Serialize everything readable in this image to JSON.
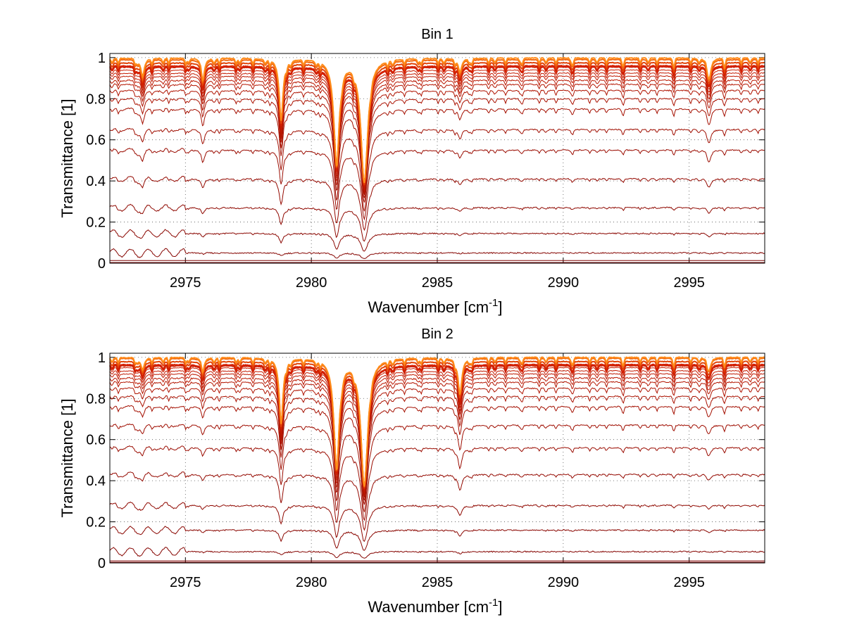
{
  "chart_data": [
    {
      "type": "line",
      "title": "Bin 1",
      "xlabel": "Wavenumber [cm",
      "xlabel_superscript": "-1",
      "xlabel_suffix": "]",
      "ylabel": "Transmittance [1]",
      "xlim": [
        2972,
        2998
      ],
      "ylim": [
        0,
        1.02
      ],
      "xticks": [
        2975,
        2980,
        2985,
        2990,
        2995
      ],
      "yticks": [
        0,
        0.2,
        0.4,
        0.6,
        0.8,
        1
      ],
      "ytick_labels": [
        "0",
        "0.2",
        "0.4",
        "0.6",
        "0.8",
        "1"
      ],
      "grid": true,
      "series_baselines": [
        0.003,
        0.013,
        0.05,
        0.145,
        0.27,
        0.41,
        0.55,
        0.65,
        0.75,
        0.8,
        0.84,
        0.87,
        0.89,
        0.91,
        0.925,
        0.94,
        0.955,
        0.96,
        0.975,
        0.99,
        0.998
      ],
      "absorption_lines": [
        {
          "x": 2973.3,
          "relative_depth": 0.09,
          "half_width": 0.08
        },
        {
          "x": 2975.7,
          "relative_depth": 0.09,
          "half_width": 0.08
        },
        {
          "x": 2978.8,
          "relative_depth": 0.3,
          "half_width": 0.09
        },
        {
          "x": 2981.0,
          "relative_depth": 0.5,
          "half_width": 0.13
        },
        {
          "x": 2982.1,
          "relative_depth": 0.6,
          "half_width": 0.16
        },
        {
          "x": 2985.9,
          "relative_depth": 0.07,
          "half_width": 0.08
        },
        {
          "x": 2995.8,
          "relative_depth": 0.1,
          "half_width": 0.08
        }
      ],
      "colors": {
        "dark": "#7a0000",
        "mid": "#d42000",
        "light": "#ff8c1a"
      }
    },
    {
      "type": "line",
      "title": "Bin 2",
      "xlabel": "Wavenumber [cm",
      "xlabel_superscript": "-1",
      "xlabel_suffix": "]",
      "ylabel": "Transmittance [1]",
      "xlim": [
        2972,
        2998
      ],
      "ylim": [
        0,
        1.02
      ],
      "xticks": [
        2975,
        2980,
        2985,
        2990,
        2995
      ],
      "yticks": [
        0,
        0.2,
        0.4,
        0.6,
        0.8,
        1
      ],
      "ytick_labels": [
        "0",
        "0.2",
        "0.4",
        "0.6",
        "0.8",
        "1"
      ],
      "grid": true,
      "series_baselines": [
        0.003,
        0.01,
        0.055,
        0.16,
        0.28,
        0.43,
        0.56,
        0.67,
        0.76,
        0.81,
        0.85,
        0.88,
        0.9,
        0.92,
        0.935,
        0.95,
        0.96,
        0.965,
        0.98,
        0.995,
        1.0
      ],
      "absorption_lines": [
        {
          "x": 2973.3,
          "relative_depth": 0.06,
          "half_width": 0.08
        },
        {
          "x": 2975.7,
          "relative_depth": 0.05,
          "half_width": 0.08
        },
        {
          "x": 2978.8,
          "relative_depth": 0.32,
          "half_width": 0.09
        },
        {
          "x": 2981.0,
          "relative_depth": 0.52,
          "half_width": 0.13
        },
        {
          "x": 2982.1,
          "relative_depth": 0.62,
          "half_width": 0.16
        },
        {
          "x": 2985.9,
          "relative_depth": 0.18,
          "half_width": 0.09
        },
        {
          "x": 2995.8,
          "relative_depth": 0.06,
          "half_width": 0.08
        }
      ],
      "colors": {
        "dark": "#7a0000",
        "mid": "#d42000",
        "light": "#ff8c1a"
      }
    }
  ]
}
